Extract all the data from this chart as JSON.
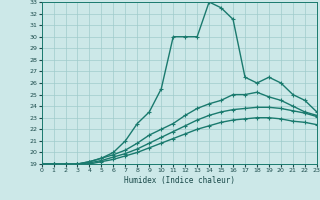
{
  "xlabel": "Humidex (Indice chaleur)",
  "bg_color": "#cce8e8",
  "line_color": "#1a7a6e",
  "grid_color": "#a0cccc",
  "xmin": 0,
  "xmax": 23,
  "ymin": 19,
  "ymax": 33,
  "series": [
    {
      "x": [
        0,
        1,
        2,
        3,
        4,
        5,
        6,
        7,
        8,
        9,
        10,
        11,
        12,
        13,
        14,
        15,
        16,
        17,
        18,
        19,
        20,
        21,
        22,
        23
      ],
      "y": [
        19,
        19,
        18.5,
        19,
        19.2,
        19.5,
        20,
        21,
        22.5,
        23.5,
        25.5,
        30,
        30,
        30,
        33,
        32.5,
        31.5,
        26.5,
        26,
        26.5,
        26,
        25,
        24.5,
        23.5
      ]
    },
    {
      "x": [
        0,
        1,
        2,
        3,
        4,
        5,
        6,
        7,
        8,
        9,
        10,
        11,
        12,
        13,
        14,
        15,
        16,
        17,
        18,
        19,
        20,
        21,
        22,
        23
      ],
      "y": [
        19,
        19,
        19,
        19,
        19.2,
        19.5,
        19.8,
        20.2,
        20.8,
        21.5,
        22,
        22.5,
        23.2,
        23.8,
        24.2,
        24.5,
        25,
        25,
        25.2,
        24.8,
        24.5,
        24,
        23.5,
        23.2
      ]
    },
    {
      "x": [
        0,
        1,
        2,
        3,
        4,
        5,
        6,
        7,
        8,
        9,
        10,
        11,
        12,
        13,
        14,
        15,
        16,
        17,
        18,
        19,
        20,
        21,
        22,
        23
      ],
      "y": [
        19,
        19,
        19,
        19,
        19.1,
        19.3,
        19.6,
        19.9,
        20.3,
        20.8,
        21.3,
        21.8,
        22.3,
        22.8,
        23.2,
        23.5,
        23.7,
        23.8,
        23.9,
        23.9,
        23.8,
        23.6,
        23.4,
        23.1
      ]
    },
    {
      "x": [
        0,
        1,
        2,
        3,
        4,
        5,
        6,
        7,
        8,
        9,
        10,
        11,
        12,
        13,
        14,
        15,
        16,
        17,
        18,
        19,
        20,
        21,
        22,
        23
      ],
      "y": [
        19,
        19,
        19,
        19,
        19.0,
        19.2,
        19.4,
        19.7,
        20.0,
        20.4,
        20.8,
        21.2,
        21.6,
        22.0,
        22.3,
        22.6,
        22.8,
        22.9,
        23.0,
        23.0,
        22.9,
        22.7,
        22.6,
        22.4
      ]
    }
  ]
}
